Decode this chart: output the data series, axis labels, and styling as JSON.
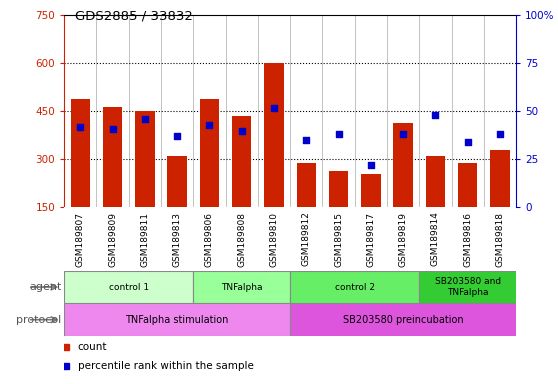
{
  "title": "GDS2885 / 33832",
  "samples": [
    "GSM189807",
    "GSM189809",
    "GSM189811",
    "GSM189813",
    "GSM189806",
    "GSM189808",
    "GSM189810",
    "GSM189812",
    "GSM189815",
    "GSM189817",
    "GSM189819",
    "GSM189814",
    "GSM189816",
    "GSM189818"
  ],
  "counts": [
    490,
    465,
    450,
    310,
    490,
    435,
    600,
    290,
    265,
    255,
    415,
    310,
    290,
    330
  ],
  "percentiles": [
    42,
    41,
    46,
    37,
    43,
    40,
    52,
    35,
    38,
    22,
    38,
    48,
    34,
    38
  ],
  "ylim_left": [
    150,
    750
  ],
  "ylim_right": [
    0,
    100
  ],
  "yticks_left": [
    150,
    300,
    450,
    600,
    750
  ],
  "yticks_right": [
    0,
    25,
    50,
    75,
    100
  ],
  "bar_color": "#cc2200",
  "dot_color": "#0000cc",
  "agent_groups": [
    {
      "label": "control 1",
      "start": 0,
      "end": 4,
      "color": "#ccffcc"
    },
    {
      "label": "TNFalpha",
      "start": 4,
      "end": 7,
      "color": "#99ff99"
    },
    {
      "label": "control 2",
      "start": 7,
      "end": 11,
      "color": "#66ee66"
    },
    {
      "label": "SB203580 and\nTNFalpha",
      "start": 11,
      "end": 14,
      "color": "#33cc33"
    }
  ],
  "protocol_groups": [
    {
      "label": "TNFalpha stimulation",
      "start": 0,
      "end": 7,
      "color": "#ee88ee"
    },
    {
      "label": "SB203580 preincubation",
      "start": 7,
      "end": 14,
      "color": "#dd55dd"
    }
  ],
  "left_axis_color": "#cc2200",
  "right_axis_color": "#0000cc",
  "sample_bg_color": "#dddddd",
  "chart_bg_color": "#ffffff"
}
